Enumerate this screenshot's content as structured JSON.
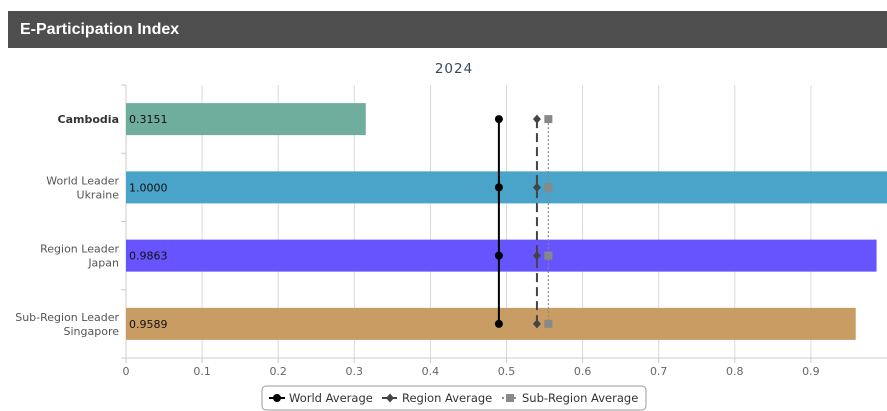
{
  "header": {
    "title": "E-Participation Index"
  },
  "chart_data": {
    "type": "bar",
    "orientation": "horizontal",
    "title": "2024",
    "xlabel": "",
    "ylabel": "",
    "xlim": [
      0,
      1
    ],
    "xticks": [
      "0",
      "0.1",
      "0.2",
      "0.3",
      "0.4",
      "0.5",
      "0.6",
      "0.7",
      "0.8",
      "0.9"
    ],
    "grid": true,
    "legend_position": "bottom",
    "categories": [
      {
        "lines": [
          "Cambodia"
        ],
        "bold": true
      },
      {
        "lines": [
          "World Leader",
          "Ukraine"
        ],
        "bold": false
      },
      {
        "lines": [
          "Region Leader",
          "Japan"
        ],
        "bold": false
      },
      {
        "lines": [
          "Sub-Region Leader",
          "Singapore"
        ],
        "bold": false
      }
    ],
    "values": [
      0.3151,
      1.0,
      0.9863,
      0.9589
    ],
    "value_labels": [
      "0.3151",
      "1.0000",
      "0.9863",
      "0.9589"
    ],
    "bar_colors": [
      "#6fae9c",
      "#4aa3c9",
      "#6655ff",
      "#c99c63"
    ],
    "reference_lines": [
      {
        "name": "World Average",
        "value": 0.49,
        "color": "#000000",
        "style": "solid",
        "marker": "circle"
      },
      {
        "name": "Region Average",
        "value": 0.54,
        "color": "#444444",
        "style": "dashed",
        "marker": "diamond"
      },
      {
        "name": "Sub-Region Average",
        "value": 0.555,
        "color": "#888888",
        "style": "dotted",
        "marker": "square"
      }
    ]
  }
}
